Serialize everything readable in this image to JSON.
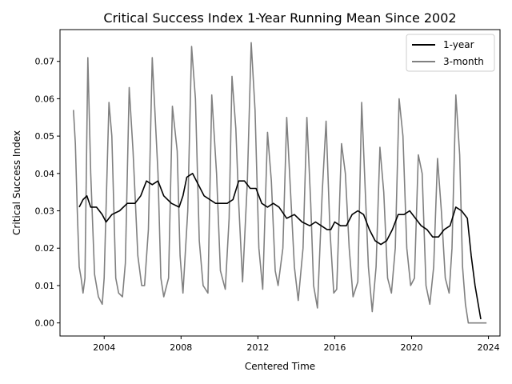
{
  "chart_data": {
    "type": "line",
    "title": "Critical Success Index 1-Year Running Mean Since 2002",
    "xlabel": "Centered Time",
    "ylabel": "Critical Success Index",
    "xlim": [
      2001.7,
      2024.6
    ],
    "ylim": [
      -0.0035,
      0.0785
    ],
    "xticks": [
      2004,
      2006,
      2008,
      2010,
      2012,
      2014,
      2016,
      2018,
      2020,
      2022,
      2024
    ],
    "xtick_labels": [
      "2004",
      "2008",
      "2012",
      "2016",
      "2020",
      "2024"
    ],
    "yticks": [
      0.0,
      0.01,
      0.02,
      0.03,
      0.04,
      0.05,
      0.06,
      0.07
    ],
    "ytick_labels": [
      "0.00",
      "0.01",
      "0.02",
      "0.03",
      "0.04",
      "0.05",
      "0.06",
      "0.07"
    ],
    "grid": false,
    "legend": {
      "placement": "top-right",
      "entries": [
        "1-year",
        "3-month"
      ]
    },
    "series": [
      {
        "name": "1-year",
        "color": "#000000",
        "x": [
          2002.7,
          2002.9,
          2003.1,
          2003.3,
          2003.6,
          2003.9,
          2004.1,
          2004.4,
          2004.8,
          2005.2,
          2005.6,
          2005.9,
          2006.2,
          2006.5,
          2006.8,
          2007.1,
          2007.5,
          2007.9,
          2008.1,
          2008.3,
          2008.6,
          2008.9,
          2009.2,
          2009.5,
          2009.8,
          2010.1,
          2010.4,
          2010.7,
          2011.0,
          2011.3,
          2011.6,
          2011.9,
          2012.2,
          2012.5,
          2012.8,
          2013.1,
          2013.5,
          2013.9,
          2014.3,
          2014.7,
          2015.0,
          2015.3,
          2015.6,
          2015.8,
          2016.0,
          2016.3,
          2016.6,
          2016.9,
          2017.2,
          2017.5,
          2017.8,
          2018.1,
          2018.4,
          2018.7,
          2019.0,
          2019.3,
          2019.6,
          2019.9,
          2020.2,
          2020.5,
          2020.8,
          2021.1,
          2021.4,
          2021.7,
          2022.0,
          2022.3,
          2022.6,
          2022.9,
          2023.1,
          2023.3,
          2023.5,
          2023.6
        ],
        "values": [
          0.031,
          0.033,
          0.034,
          0.031,
          0.031,
          0.029,
          0.027,
          0.029,
          0.03,
          0.032,
          0.032,
          0.034,
          0.038,
          0.037,
          0.038,
          0.034,
          0.032,
          0.031,
          0.034,
          0.039,
          0.04,
          0.037,
          0.034,
          0.033,
          0.032,
          0.032,
          0.032,
          0.033,
          0.038,
          0.038,
          0.036,
          0.036,
          0.032,
          0.031,
          0.032,
          0.031,
          0.028,
          0.029,
          0.027,
          0.026,
          0.027,
          0.026,
          0.025,
          0.025,
          0.027,
          0.026,
          0.026,
          0.029,
          0.03,
          0.029,
          0.025,
          0.022,
          0.021,
          0.022,
          0.025,
          0.029,
          0.029,
          0.03,
          0.028,
          0.026,
          0.025,
          0.023,
          0.023,
          0.025,
          0.026,
          0.031,
          0.03,
          0.028,
          0.018,
          0.01,
          0.004,
          0.001
        ]
      },
      {
        "name": "3-month",
        "color": "#808080",
        "x": [
          2002.4,
          2002.5,
          2002.6,
          2002.7,
          2002.8,
          2002.9,
          2003.0,
          2003.15,
          2003.3,
          2003.5,
          2003.7,
          2003.9,
          2004.0,
          2004.25,
          2004.4,
          2004.6,
          2004.75,
          2004.95,
          2005.1,
          2005.3,
          2005.5,
          2005.75,
          2005.95,
          2006.1,
          2006.3,
          2006.5,
          2006.8,
          2006.95,
          2007.1,
          2007.35,
          2007.55,
          2007.8,
          2007.95,
          2008.1,
          2008.35,
          2008.55,
          2008.75,
          2008.95,
          2009.15,
          2009.4,
          2009.6,
          2009.85,
          2010.05,
          2010.3,
          2010.5,
          2010.65,
          2010.85,
          2011.0,
          2011.2,
          2011.45,
          2011.65,
          2011.85,
          2012.05,
          2012.25,
          2012.5,
          2012.7,
          2012.9,
          2013.05,
          2013.3,
          2013.5,
          2013.7,
          2013.9,
          2014.1,
          2014.35,
          2014.55,
          2014.75,
          2014.9,
          2015.1,
          2015.35,
          2015.55,
          2015.75,
          2015.95,
          2016.1,
          2016.35,
          2016.55,
          2016.75,
          2016.95,
          2017.2,
          2017.4,
          2017.55,
          2017.75,
          2017.95,
          2018.15,
          2018.35,
          2018.55,
          2018.75,
          2018.95,
          2019.15,
          2019.35,
          2019.55,
          2019.75,
          2019.95,
          2020.15,
          2020.35,
          2020.55,
          2020.75,
          2020.95,
          2021.15,
          2021.35,
          2021.55,
          2021.75,
          2021.95,
          2022.1,
          2022.3,
          2022.5,
          2022.65,
          2022.8,
          2022.95,
          2023.1,
          2023.3,
          2023.5,
          2023.9
        ],
        "values": [
          0.057,
          0.048,
          0.03,
          0.015,
          0.012,
          0.008,
          0.012,
          0.071,
          0.04,
          0.013,
          0.007,
          0.005,
          0.012,
          0.059,
          0.05,
          0.012,
          0.008,
          0.007,
          0.016,
          0.063,
          0.046,
          0.018,
          0.01,
          0.01,
          0.025,
          0.071,
          0.04,
          0.012,
          0.007,
          0.012,
          0.058,
          0.046,
          0.018,
          0.008,
          0.03,
          0.074,
          0.06,
          0.022,
          0.01,
          0.008,
          0.061,
          0.04,
          0.014,
          0.009,
          0.028,
          0.066,
          0.052,
          0.032,
          0.011,
          0.038,
          0.075,
          0.057,
          0.02,
          0.009,
          0.051,
          0.038,
          0.014,
          0.01,
          0.02,
          0.055,
          0.035,
          0.015,
          0.006,
          0.02,
          0.055,
          0.032,
          0.01,
          0.004,
          0.035,
          0.054,
          0.025,
          0.008,
          0.009,
          0.048,
          0.04,
          0.02,
          0.007,
          0.011,
          0.059,
          0.04,
          0.015,
          0.003,
          0.015,
          0.047,
          0.035,
          0.012,
          0.008,
          0.02,
          0.06,
          0.05,
          0.02,
          0.01,
          0.012,
          0.045,
          0.04,
          0.01,
          0.005,
          0.015,
          0.044,
          0.03,
          0.012,
          0.008,
          0.02,
          0.061,
          0.045,
          0.015,
          0.005,
          0.0,
          0.0,
          0.0,
          0.0,
          0.0
        ]
      }
    ]
  }
}
